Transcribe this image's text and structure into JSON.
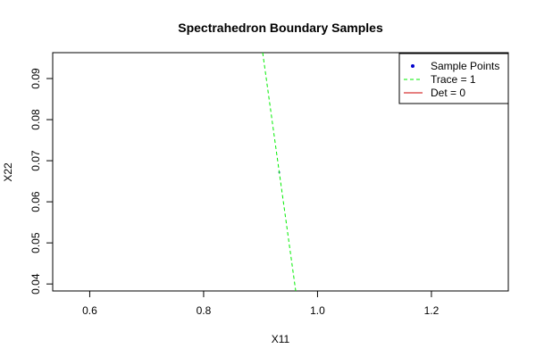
{
  "chart_data": {
    "type": "line",
    "title": "Spectrahedron Boundary Samples",
    "xlabel": "X11",
    "ylabel": "X22",
    "xlim": [
      0.535,
      1.335
    ],
    "ylim": [
      0.0383,
      0.0963
    ],
    "x_ticks": [
      0.6,
      0.8,
      1.0,
      1.2
    ],
    "x_tick_labels": [
      "0.6",
      "0.8",
      "1.0",
      "1.2"
    ],
    "y_ticks": [
      0.04,
      0.05,
      0.06,
      0.07,
      0.08,
      0.09
    ],
    "y_tick_labels": [
      "0.04",
      "0.05",
      "0.06",
      "0.07",
      "0.08",
      "0.09"
    ],
    "grid": false,
    "legend_position": "top-right",
    "series": [
      {
        "name": "Sample Points",
        "kind": "points",
        "color": "#0000cd",
        "x": [
          0.9328
        ],
        "y": [
          0.0672
        ]
      },
      {
        "name": "Trace = 1",
        "kind": "dashed-line",
        "color": "#00ee00",
        "x": [
          0.9037,
          0.9617
        ],
        "y": [
          0.0963,
          0.0383
        ]
      },
      {
        "name": "Det = 0",
        "kind": "line",
        "color": "#cd0000",
        "x": [],
        "y": []
      }
    ]
  }
}
